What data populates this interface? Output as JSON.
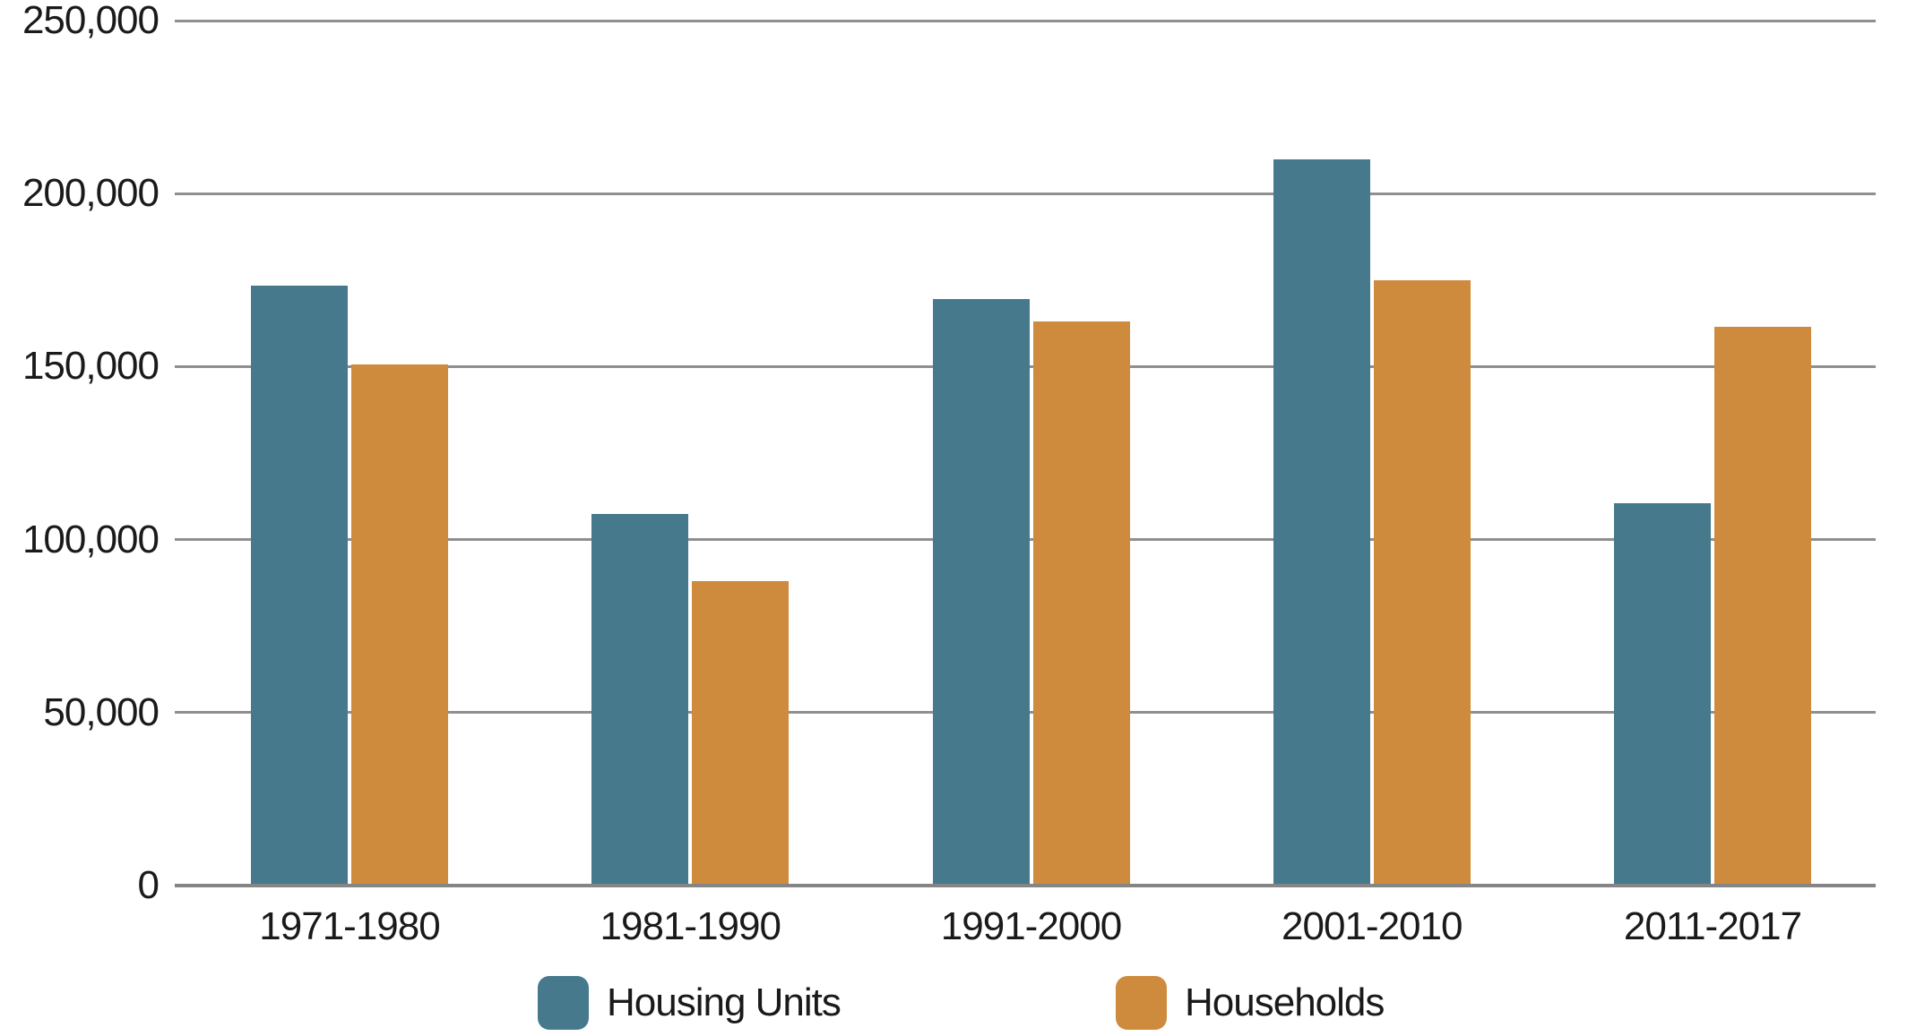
{
  "chart_data": {
    "type": "bar",
    "categories": [
      "1971-1980",
      "1981-1990",
      "1991-2000",
      "2001-2010",
      "2011-2017"
    ],
    "series": [
      {
        "name": "Housing Units",
        "color": "#45798b",
        "values": [
          173500,
          107500,
          169500,
          210000,
          110500
        ]
      },
      {
        "name": "Households",
        "color": "#ce8a3d",
        "values": [
          150500,
          88000,
          163000,
          175000,
          161500
        ]
      }
    ],
    "title": "",
    "xlabel": "",
    "ylabel": "",
    "ylim": [
      0,
      250000
    ],
    "ytick_step": 50000,
    "ytick_labels": [
      "0",
      "50,000",
      "100,000",
      "150,000",
      "200,000",
      "250,000"
    ],
    "grid": true,
    "legend_position": "bottom"
  },
  "legend": {
    "items": [
      {
        "label": "Housing Units"
      },
      {
        "label": "Households"
      }
    ]
  },
  "colors": {
    "background": "#ffffff",
    "gridline": "#8f8f8f",
    "axis_line": "#858585",
    "text": "#1a1a1a"
  }
}
